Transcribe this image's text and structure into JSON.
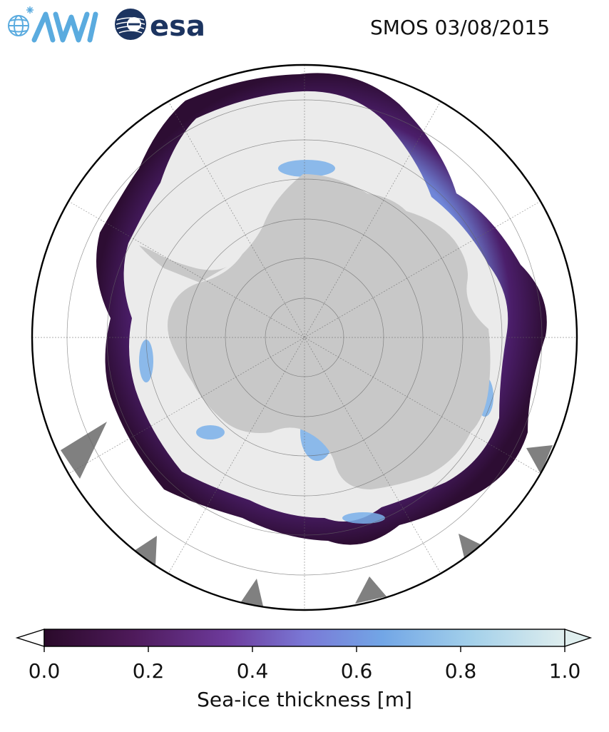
{
  "header": {
    "logos": [
      {
        "name": "AWI",
        "icon": "awi-logo",
        "color": "#5aabdf"
      },
      {
        "name": "esa",
        "icon": "esa-logo",
        "color": "#1c3460"
      }
    ],
    "title": "SMOS 03/08/2015"
  },
  "map": {
    "projection": "south-polar-stereographic",
    "land_color": "#c8c8c8",
    "ice_color": "#ebebeb",
    "ocean_color": "#ffffff",
    "nodata_color": "#808080",
    "gridlines": true
  },
  "colorbar": {
    "label": "Sea-ice thickness [m]",
    "min": 0.0,
    "max": 1.0,
    "extend": "both",
    "ticks": [
      {
        "value": 0.0,
        "label": "0.0"
      },
      {
        "value": 0.2,
        "label": "0.2"
      },
      {
        "value": 0.4,
        "label": "0.4"
      },
      {
        "value": 0.6,
        "label": "0.6"
      },
      {
        "value": 0.8,
        "label": "0.8"
      },
      {
        "value": 1.0,
        "label": "1.0"
      }
    ],
    "colormap": [
      "#2a0a2a",
      "#4e1a5a",
      "#6d3a9b",
      "#7a78d6",
      "#72a6e6",
      "#a3d0ea",
      "#dfeeee"
    ]
  }
}
